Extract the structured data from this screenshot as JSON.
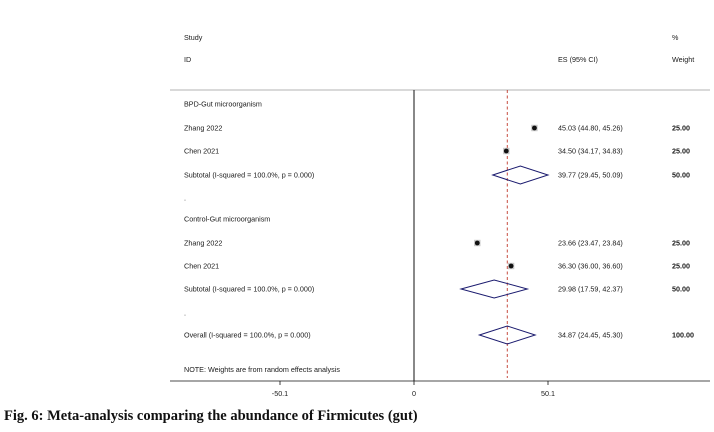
{
  "caption": "Fig. 6: Meta-analysis comparing the abundance of Firmicutes (gut)",
  "chart_data": {
    "type": "forest",
    "header": {
      "study_line1": "Study",
      "study_line2": "ID",
      "es_label": "ES (95% CI)",
      "pct_line1": "%",
      "pct_line2": "Weight"
    },
    "xaxis": {
      "ticks": [
        {
          "value": -50.1,
          "label": "-50.1"
        },
        {
          "value": 0,
          "label": "0"
        },
        {
          "value": 50.1,
          "label": "50.1"
        }
      ],
      "range": [
        -85,
        110
      ]
    },
    "overall_line_value": 34.87,
    "rows": [
      {
        "kind": "group",
        "label": "BPD-Gut microorganism"
      },
      {
        "kind": "study",
        "label": "Zhang 2022",
        "es": 45.03,
        "lo": 44.8,
        "hi": 45.26,
        "es_text": "45.03 (44.80, 45.26)",
        "weight": "25.00"
      },
      {
        "kind": "study",
        "label": "Chen 2021",
        "es": 34.5,
        "lo": 34.17,
        "hi": 34.83,
        "es_text": "34.50 (34.17, 34.83)",
        "weight": "25.00"
      },
      {
        "kind": "subtotal",
        "label": "Subtotal  (I-squared = 100.0%, p = 0.000)",
        "es": 39.77,
        "lo": 29.45,
        "hi": 50.09,
        "es_text": "39.77 (29.45, 50.09)",
        "weight": "50.00"
      },
      {
        "kind": "dot",
        "label": "."
      },
      {
        "kind": "group",
        "label": "Control-Gut microorganism"
      },
      {
        "kind": "study",
        "label": "Zhang 2022",
        "es": 23.66,
        "lo": 23.47,
        "hi": 23.84,
        "es_text": "23.66 (23.47, 23.84)",
        "weight": "25.00"
      },
      {
        "kind": "study",
        "label": "Chen 2021",
        "es": 36.3,
        "lo": 36.0,
        "hi": 36.6,
        "es_text": "36.30 (36.00, 36.60)",
        "weight": "25.00"
      },
      {
        "kind": "subtotal",
        "label": "Subtotal  (I-squared = 100.0%, p = 0.000)",
        "es": 29.98,
        "lo": 17.59,
        "hi": 42.37,
        "es_text": "29.98 (17.59, 42.37)",
        "weight": "50.00"
      },
      {
        "kind": "dot",
        "label": "."
      },
      {
        "kind": "overall",
        "label": "Overall  (I-squared = 100.0%, p = 0.000)",
        "es": 34.87,
        "lo": 24.45,
        "hi": 45.3,
        "es_text": "34.87 (24.45, 45.30)",
        "weight": "100.00"
      }
    ],
    "note": "NOTE: Weights are from random effects analysis",
    "colors": {
      "diamond": "#1a1a6e",
      "ref_line": "#c0392b",
      "text": "#1a1a1a"
    }
  }
}
